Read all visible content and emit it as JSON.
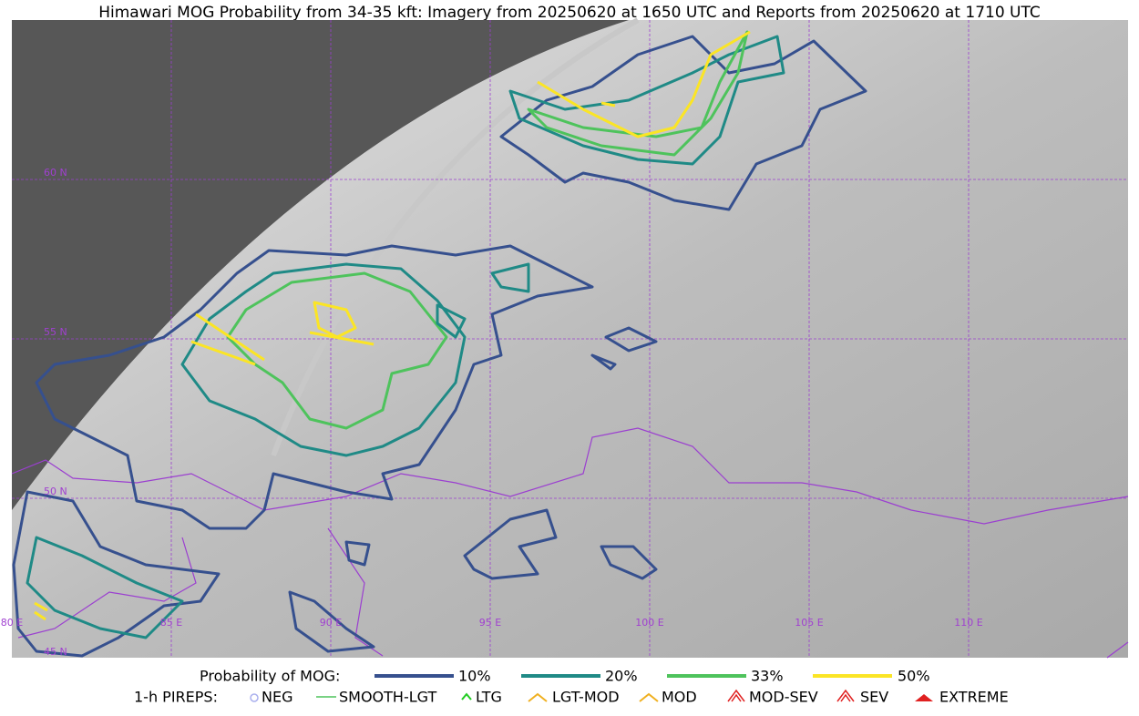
{
  "title": "Himawari MOG Probability from 34-35 kft: Imagery from 20250620 at 1650 UTC and Reports from 20250620 at 1710 UTC",
  "grid_labels": {
    "latitudes": [
      "60 N",
      "55 N",
      "50 N",
      "45 N"
    ],
    "longitudes": [
      "80 E",
      "85 E",
      "90 E",
      "95 E",
      "100 E",
      "105 E",
      "110 E"
    ]
  },
  "legend": {
    "probability": {
      "label": "Probability of MOG:",
      "items": [
        {
          "label": "10%",
          "color": "#36508e"
        },
        {
          "label": "20%",
          "color": "#1f8a86"
        },
        {
          "label": "33%",
          "color": "#4ec35c"
        },
        {
          "label": "50%",
          "color": "#fbe525"
        }
      ]
    },
    "pireps": {
      "label": "1-h PIREPS:",
      "items": [
        "NEG",
        "SMOOTH-LGT",
        "LTG",
        "LGT-MOD",
        "MOD",
        "MOD-SEV",
        "SEV",
        "EXTREME"
      ]
    }
  }
}
